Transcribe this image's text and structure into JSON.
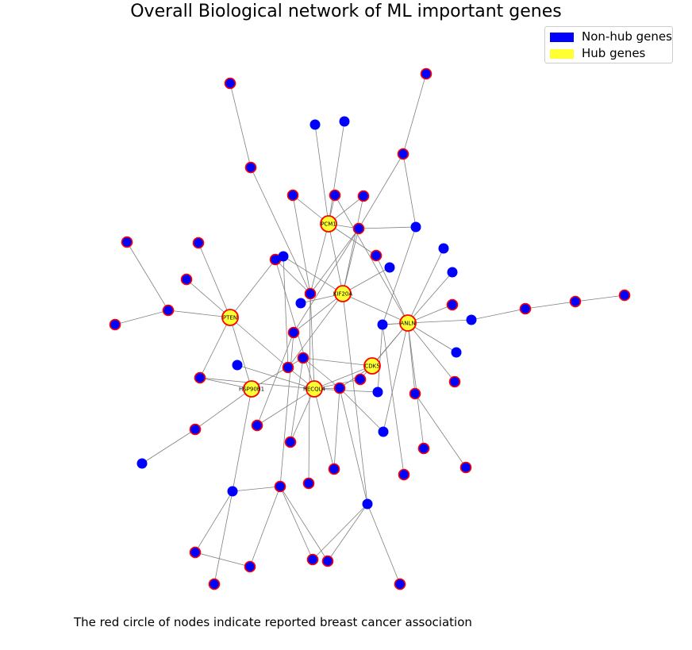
{
  "title": "Overall Biological network of ML important genes",
  "legend": {
    "items": [
      {
        "label": "Non-hub genes",
        "color": "#0000ff"
      },
      {
        "label": "Hub genes",
        "color": "#ffff33"
      }
    ]
  },
  "caption": "The red circle of nodes indicate reported breast cancer association",
  "colors": {
    "node_fill": "#0000ff",
    "hub_fill": "#ffff33",
    "ring": "#ff0000",
    "edge": "#808080"
  },
  "hubs": [
    {
      "id": "PCM1",
      "label": "PCM1"
    },
    {
      "id": "KIF20A",
      "label": "KIF20A"
    },
    {
      "id": "PTEN",
      "label": "PTEN"
    },
    {
      "id": "ANLN",
      "label": "ANLN"
    },
    {
      "id": "CDK5",
      "label": "CDK5"
    },
    {
      "id": "HSP90B1",
      "label": "HSP90B1"
    },
    {
      "id": "RECQL4",
      "label": "RECQL4"
    }
  ]
}
